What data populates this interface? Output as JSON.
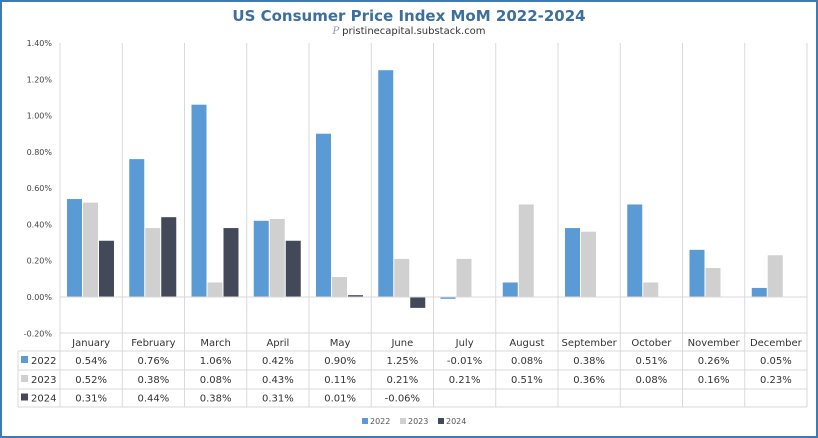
{
  "chart_data": {
    "type": "bar",
    "title": "US Consumer Price Index MoM 2022-2024",
    "subtitle": "pristinecapital.substack.com",
    "categories": [
      "January",
      "February",
      "March",
      "April",
      "May",
      "June",
      "July",
      "August",
      "September",
      "October",
      "November",
      "December"
    ],
    "series": [
      {
        "name": "2022",
        "color": "#5b9bd5",
        "values": [
          0.54,
          0.76,
          1.06,
          0.42,
          0.9,
          1.25,
          -0.01,
          0.08,
          0.38,
          0.51,
          0.26,
          0.05
        ]
      },
      {
        "name": "2023",
        "color": "#d0d0d0",
        "values": [
          0.52,
          0.38,
          0.08,
          0.43,
          0.11,
          0.21,
          0.21,
          0.51,
          0.36,
          0.08,
          0.16,
          0.23
        ]
      },
      {
        "name": "2024",
        "color": "#44495a",
        "values": [
          0.31,
          0.44,
          0.38,
          0.31,
          0.01,
          -0.06,
          null,
          null,
          null,
          null,
          null,
          null
        ]
      }
    ],
    "ylim": [
      -0.2,
      1.4
    ],
    "yticks": [
      -0.2,
      0,
      0.2,
      0.4,
      0.6,
      0.8,
      1.0,
      1.2,
      1.4
    ],
    "ytick_labels": [
      "-0.20%",
      "0.00%",
      "0.20%",
      "0.40%",
      "0.60%",
      "0.80%",
      "1.00%",
      "1.20%",
      "1.40%"
    ],
    "grid": "vertical",
    "data_table": true,
    "legend": "bottom-center",
    "xlabel": "",
    "ylabel": ""
  }
}
